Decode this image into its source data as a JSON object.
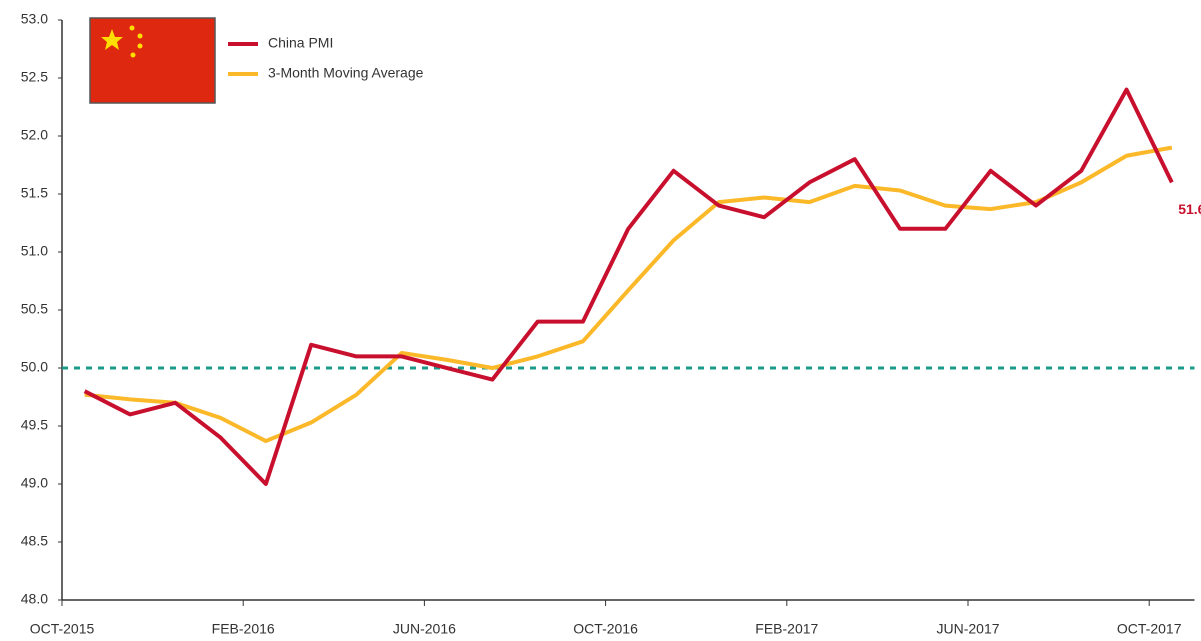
{
  "chart_data": {
    "type": "line",
    "categories": [
      "OCT-2015",
      null,
      null,
      null,
      "FEB-2016",
      null,
      null,
      null,
      "JUN-2016",
      null,
      null,
      null,
      "OCT-2016",
      null,
      null,
      null,
      "FEB-2017",
      null,
      null,
      null,
      "JUN-2017",
      null,
      null,
      null,
      "OCT-2017"
    ],
    "series": [
      {
        "name": "China PMI",
        "color": "#c8102e",
        "values": [
          49.8,
          49.6,
          49.7,
          49.4,
          49.0,
          50.2,
          50.1,
          50.1,
          50.0,
          49.9,
          50.4,
          50.4,
          51.2,
          51.7,
          51.4,
          51.3,
          51.6,
          51.8,
          51.2,
          51.2,
          51.7,
          51.4,
          51.7,
          52.4,
          51.6
        ]
      },
      {
        "name": "3-Month Moving Average",
        "color": "#fbb829",
        "values": [
          49.77,
          49.73,
          49.7,
          49.57,
          49.37,
          49.53,
          49.77,
          50.13,
          50.07,
          50.0,
          50.1,
          50.23,
          50.67,
          51.1,
          51.43,
          51.47,
          51.43,
          51.57,
          51.53,
          51.4,
          51.37,
          51.43,
          51.6,
          51.83,
          51.9
        ]
      }
    ],
    "ylim": [
      48.0,
      53.0
    ],
    "yticks": [
      {
        "value": 48,
        "label": "48.0"
      },
      48.5,
      {
        "value": 49,
        "label": "49.0"
      },
      49.5,
      {
        "value": 50,
        "label": "50.0"
      },
      50.5,
      {
        "value": 51,
        "label": "51.0"
      },
      51.5,
      {
        "value": 52,
        "label": "52.0"
      },
      52.5,
      {
        "value": 53,
        "label": "53.0"
      }
    ],
    "reference_line": {
      "value": 50.0,
      "color": "#1a9b8a"
    },
    "label_last_point": 0,
    "grid": false
  }
}
